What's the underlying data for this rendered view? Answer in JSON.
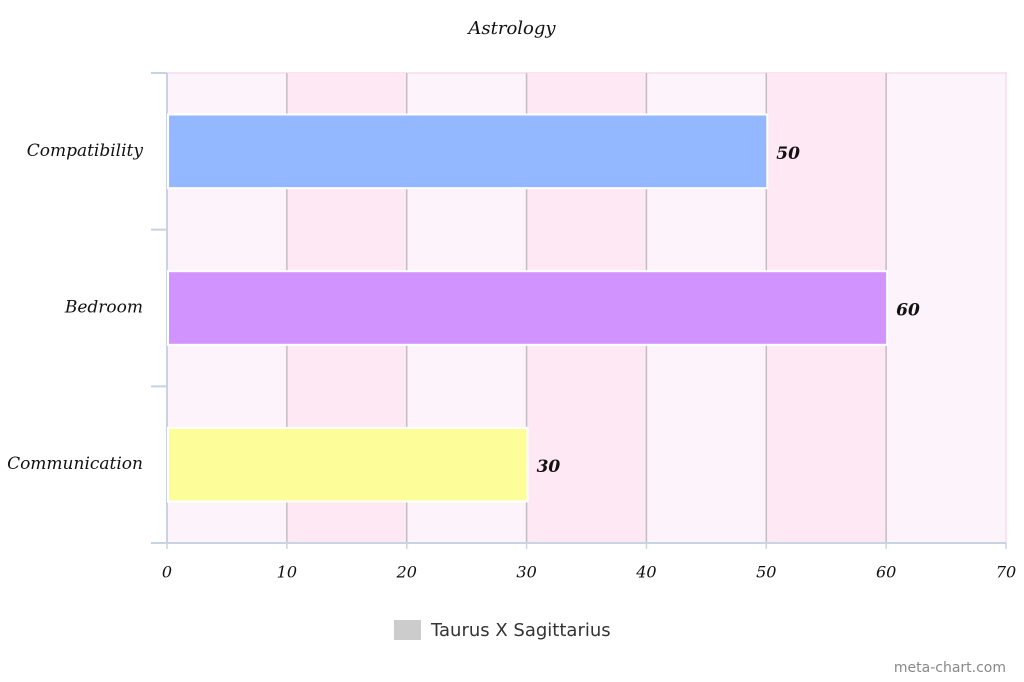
{
  "chart_data": {
    "type": "bar",
    "orientation": "horizontal",
    "title": "Astrology",
    "categories": [
      "Compatibility",
      "Bedroom",
      "Communication"
    ],
    "series": [
      {
        "name": "Taurus X Sagittarius",
        "color": "#cccccc",
        "values": [
          50,
          60,
          30
        ],
        "colors": [
          "#94b8ff",
          "#d194ff",
          "#fdfd99"
        ]
      }
    ],
    "xlim": [
      0,
      70
    ],
    "xticks": [
      0,
      10,
      20,
      30,
      40,
      50,
      60,
      70
    ],
    "grid": true,
    "legend": "bottom",
    "credit": "meta-chart.com"
  }
}
